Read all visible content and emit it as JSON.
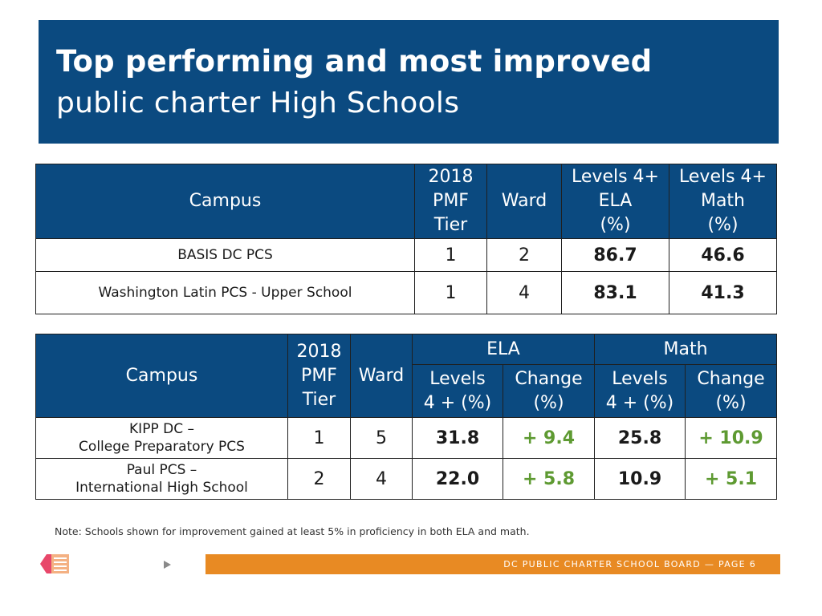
{
  "title": {
    "line1": "Top performing and most improved",
    "line2": "public charter High Schools"
  },
  "top_table": {
    "headers": {
      "campus": "Campus",
      "pmf": [
        "2018",
        "PMF",
        "Tier"
      ],
      "ward": "Ward",
      "ela": [
        "Levels 4+",
        "ELA",
        "(%)"
      ],
      "math": [
        "Levels 4+",
        "Math",
        "(%)"
      ]
    },
    "rows": [
      {
        "campus": "BASIS DC PCS",
        "tier": "1",
        "ward": "2",
        "ela": "86.7",
        "math": "46.6"
      },
      {
        "campus": "Washington Latin PCS - Upper School",
        "tier": "1",
        "ward": "4",
        "ela": "83.1",
        "math": "41.3"
      }
    ]
  },
  "improved_table": {
    "headers": {
      "campus": "Campus",
      "pmf": [
        "2018",
        "PMF",
        "Tier"
      ],
      "ward": "Ward",
      "ela": "ELA",
      "math": "Math",
      "levels": [
        "Levels",
        "4 + (%)"
      ],
      "change": [
        "Change",
        "(%)"
      ]
    },
    "rows": [
      {
        "campus_line1": "KIPP DC –",
        "campus_line2": "College Preparatory PCS",
        "tier": "1",
        "ward": "5",
        "ela_level": "31.8",
        "ela_change": "+ 9.4",
        "math_level": "25.8",
        "math_change": "+ 10.9"
      },
      {
        "campus_line1": "Paul PCS –",
        "campus_line2": "International High School",
        "tier": "2",
        "ward": "4",
        "ela_level": "22.0",
        "ela_change": "+ 5.8",
        "math_level": "10.9",
        "math_change": "+ 5.1"
      }
    ]
  },
  "note": "Note: Schools shown for improvement gained at least 5% in proficiency in both ELA and math.",
  "footer": "DC PUBLIC CHARTER SCHOOL BOARD — PAGE 6",
  "icons": {
    "logo": "pencil-icon",
    "arrow": "play-arrow-icon"
  },
  "colors": {
    "header_blue": "#0b4a80",
    "accent_orange": "#e88a23",
    "positive_green": "#5e9a32"
  }
}
